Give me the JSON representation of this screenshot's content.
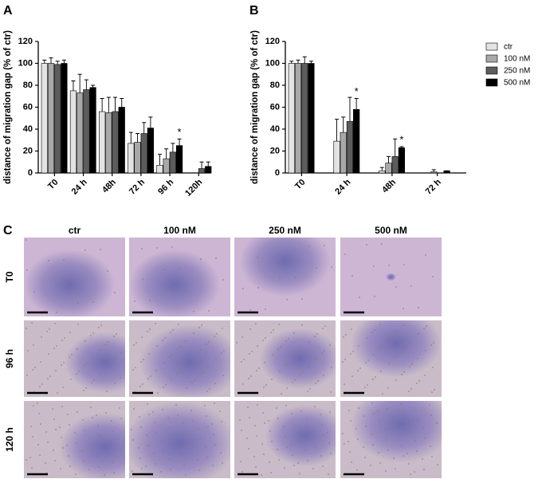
{
  "chart_data": [
    {
      "type": "bar",
      "panel_label": "A",
      "y_label": "distance of migration gap (% of ctr)",
      "categories": [
        "T0",
        "24 h",
        "48h",
        "72 h",
        "96 h",
        "120h"
      ],
      "ylim": [
        0,
        120
      ],
      "yticks": [
        0,
        20,
        40,
        60,
        80,
        100,
        120
      ],
      "series": [
        {
          "name": "ctr",
          "color": "#e3e3e3",
          "values": [
            100,
            75,
            56,
            27,
            7,
            0
          ],
          "errors": [
            3,
            9,
            12,
            10,
            10,
            0
          ]
        },
        {
          "name": "100 nM",
          "color": "#a8a8a8",
          "values": [
            100,
            73,
            55,
            28,
            13,
            0
          ],
          "errors": [
            5,
            17,
            14,
            8,
            9,
            0
          ]
        },
        {
          "name": "250 nM",
          "color": "#5c5c5c",
          "values": [
            99,
            76,
            56,
            36,
            19,
            4
          ],
          "errors": [
            3,
            9,
            13,
            10,
            8,
            6
          ]
        },
        {
          "name": "500 nM",
          "color": "#000000",
          "values": [
            100,
            78,
            60,
            41,
            25,
            6
          ],
          "errors": [
            3,
            2,
            8,
            10,
            6,
            4
          ]
        }
      ],
      "annotations": [
        {
          "text": "*",
          "series": 3,
          "category": 4
        }
      ]
    },
    {
      "type": "bar",
      "panel_label": "B",
      "y_label": "distance of migration gap (% of ctr)",
      "categories": [
        "T0",
        "24 h",
        "48h",
        "72 h"
      ],
      "ylim": [
        0,
        120
      ],
      "yticks": [
        0,
        20,
        40,
        60,
        80,
        100,
        120
      ],
      "legend": "right",
      "series": [
        {
          "name": "ctr",
          "color": "#e3e3e3",
          "values": [
            100,
            29,
            2,
            0
          ],
          "errors": [
            2,
            20,
            3,
            0
          ]
        },
        {
          "name": "100 nM",
          "color": "#a8a8a8",
          "values": [
            100,
            37,
            9,
            1
          ],
          "errors": [
            3,
            14,
            6,
            2
          ]
        },
        {
          "name": "250 nM",
          "color": "#5c5c5c",
          "values": [
            100,
            47,
            15,
            0
          ],
          "errors": [
            6,
            22,
            16,
            0
          ]
        },
        {
          "name": "500 nM",
          "color": "#000000",
          "values": [
            100,
            58,
            23,
            2
          ],
          "errors": [
            2,
            10,
            1,
            0
          ]
        }
      ],
      "annotations": [
        {
          "text": "*",
          "series": 3,
          "category": 1
        },
        {
          "text": "*",
          "series": 3,
          "category": 2
        }
      ]
    }
  ],
  "image_panel": {
    "label": "C",
    "columns": [
      "ctr",
      "100 nM",
      "250 nM",
      "500 nM"
    ],
    "rows": [
      "T0",
      "96 h",
      "120 h"
    ]
  }
}
